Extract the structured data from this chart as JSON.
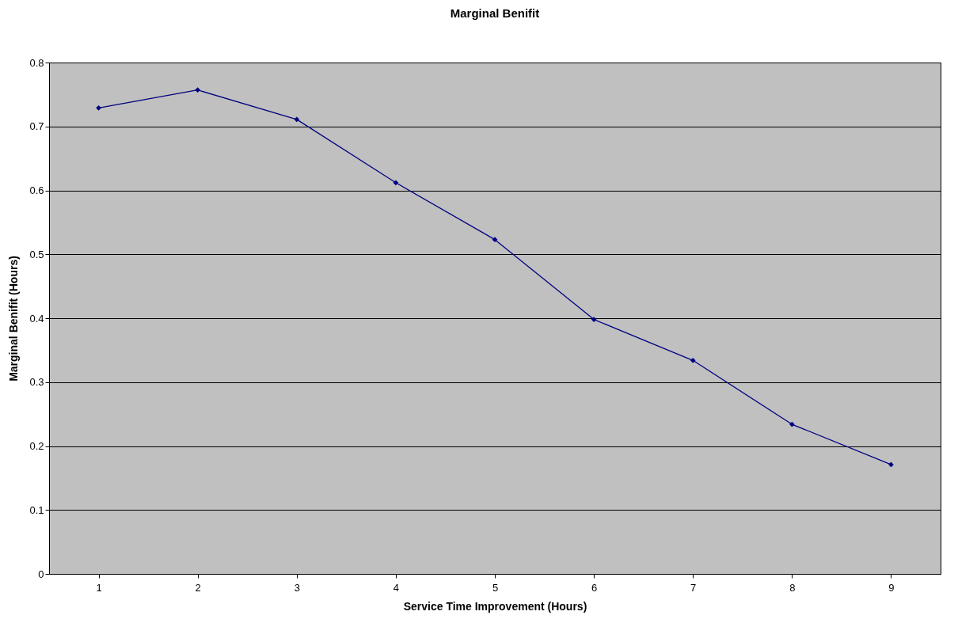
{
  "chart_data": {
    "type": "line",
    "title": "Marginal Benifit",
    "xlabel": "Service Time Improvement (Hours)",
    "ylabel": "Marginal Benifit (Hours)",
    "categories": [
      "1",
      "2",
      "3",
      "4",
      "5",
      "6",
      "7",
      "8",
      "9"
    ],
    "series": [
      {
        "color": "#000080",
        "values": [
          0.729,
          0.757,
          0.711,
          0.612,
          0.523,
          0.398,
          0.334,
          0.234,
          0.171
        ]
      }
    ],
    "ylim": [
      0,
      0.8
    ],
    "yticks": [
      0,
      0.1,
      0.2,
      0.3,
      0.4,
      0.5,
      0.6,
      0.7,
      0.8
    ],
    "grid": "y",
    "marker": "diamond",
    "line_style": "solid"
  }
}
